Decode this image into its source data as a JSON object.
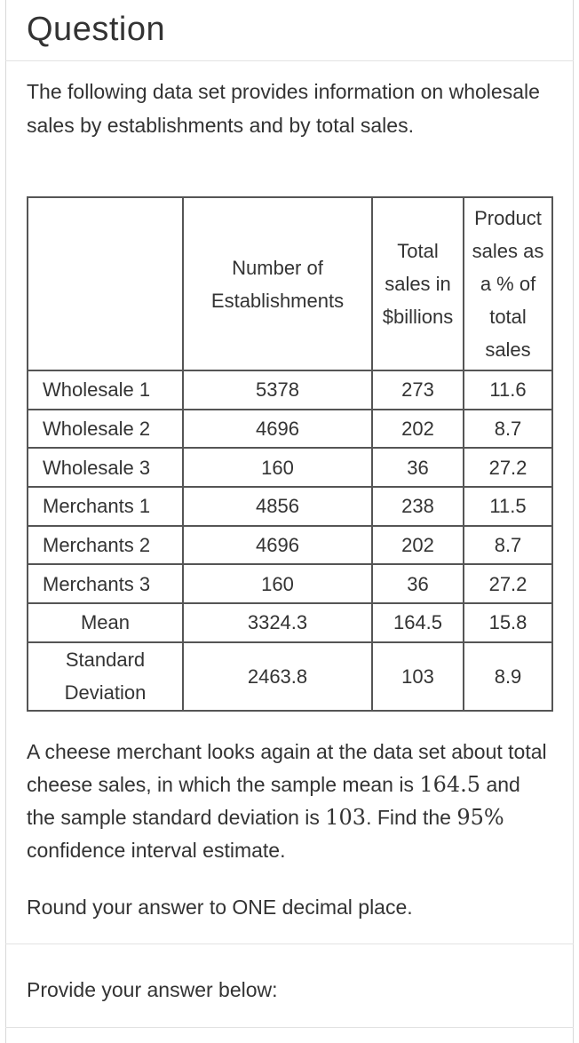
{
  "question": {
    "title": "Question",
    "intro": "The following data set provides information on wholesale sales by establishments and by total sales."
  },
  "table": {
    "headers": [
      "",
      "Number of Establishments",
      "Total sales in $billions",
      "Product sales as a % of total sales"
    ],
    "rows": [
      {
        "label": "Wholesale 1",
        "establishments": "5378",
        "total_sales": "273",
        "product_pct": "11.6"
      },
      {
        "label": "Wholesale 2",
        "establishments": "4696",
        "total_sales": "202",
        "product_pct": "8.7"
      },
      {
        "label": "Wholesale 3",
        "establishments": "160",
        "total_sales": "36",
        "product_pct": "27.2"
      },
      {
        "label": "Merchants 1",
        "establishments": "4856",
        "total_sales": "238",
        "product_pct": "11.5"
      },
      {
        "label": "Merchants 2",
        "establishments": "4696",
        "total_sales": "202",
        "product_pct": "8.7"
      },
      {
        "label": "Merchants 3",
        "establishments": "160",
        "total_sales": "36",
        "product_pct": "27.2"
      },
      {
        "label": "Mean",
        "establishments": "3324.3",
        "total_sales": "164.5",
        "product_pct": "15.8"
      },
      {
        "label": "Standard Deviation",
        "establishments": "2463.8",
        "total_sales": "103",
        "product_pct": "8.9"
      }
    ]
  },
  "problem": {
    "text_1": "A cheese merchant looks again at the data set about total cheese sales, in which the sample mean is ",
    "mean": "164.5",
    "text_2": " and the sample standard deviation is ",
    "sd": "103",
    "text_3": ". Find the ",
    "confidence": "95%",
    "text_4": " confidence interval estimate.",
    "rounding": "Round your answer to ONE decimal place."
  },
  "answer": {
    "prompt": "Provide your answer below:"
  }
}
